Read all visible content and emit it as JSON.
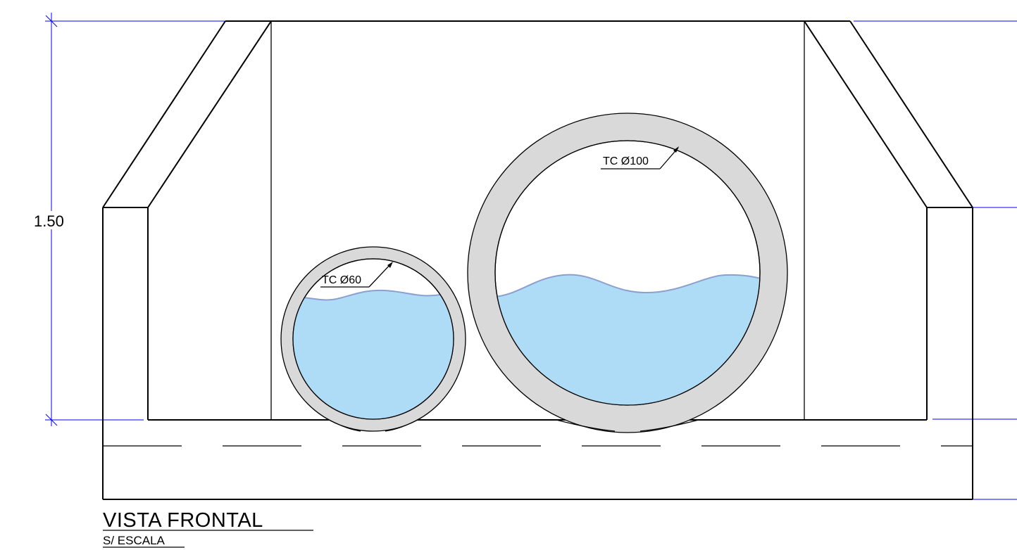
{
  "dimension": {
    "height_value": "1.50"
  },
  "pipes": [
    {
      "label": "TC Ø60"
    },
    {
      "label": "TC Ø100"
    }
  ],
  "title": {
    "main": "VISTA FRONTAL",
    "sub": "S/ ESCALA"
  },
  "colors": {
    "dimension_line": "#0000ff",
    "pipe_wall": "#d9d9d9",
    "water": "#aedcf6",
    "water_surface": "#8c9fcf",
    "outline": "#000000"
  }
}
